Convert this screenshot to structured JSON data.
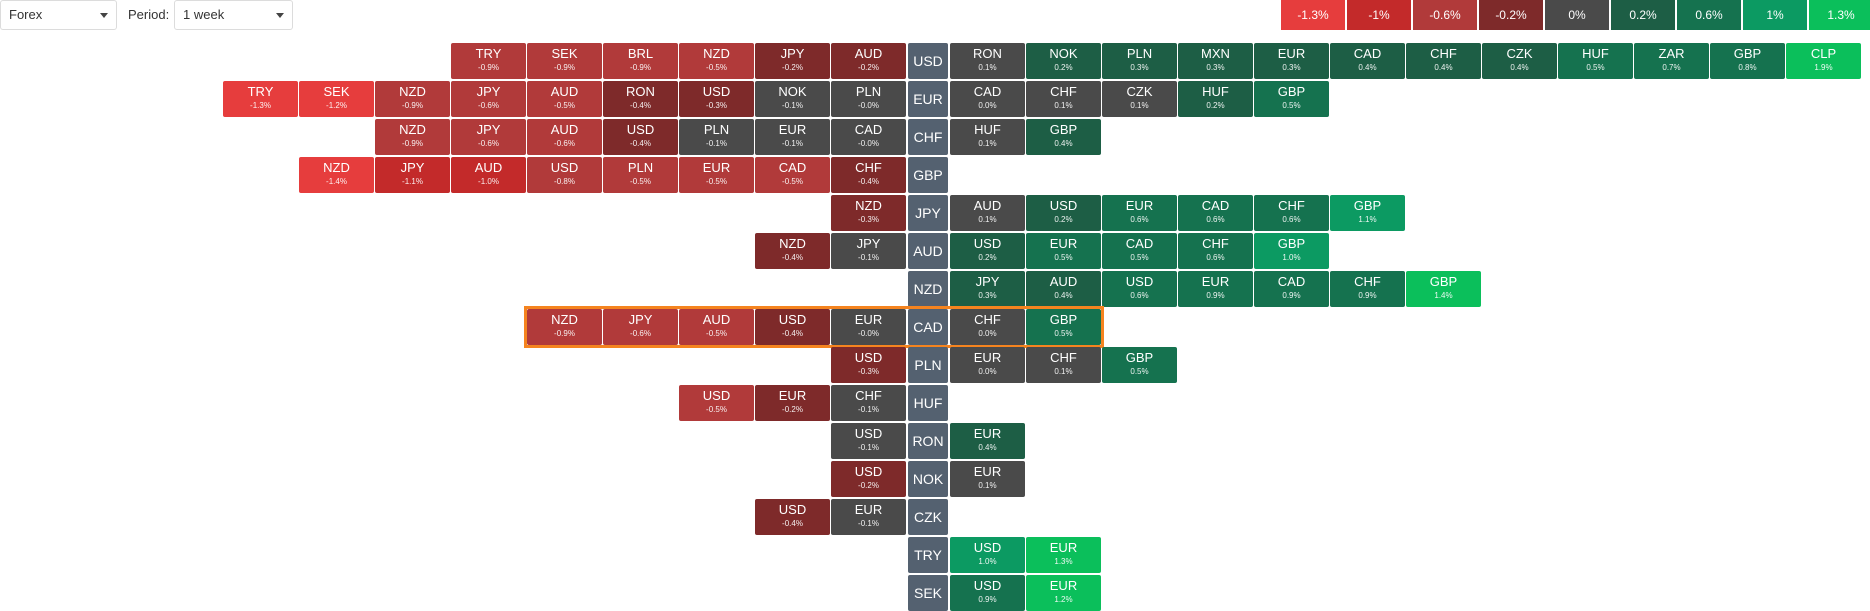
{
  "controls": {
    "market": "Forex",
    "period_label": "Period:",
    "period": "1 week"
  },
  "colors": {
    "neg_strong": "#e63d3d",
    "neg_mid": "#c32a2a",
    "neg_soft": "#b13a3a",
    "neg_weak": "#7e2a2a",
    "neutral": "#4a4a4a",
    "pos_weak": "#1d5e45",
    "pos_soft": "#15724f",
    "pos_mid": "#0c9a62",
    "pos_strong": "#0bbf5b",
    "base": "#546170",
    "highlight": "#f5841f"
  },
  "scale": [
    "-1.3%",
    "-1%",
    "-0.6%",
    "-0.2%",
    "0%",
    "0.2%",
    "0.6%",
    "1%",
    "1.3%"
  ],
  "highlight_row": "CAD",
  "rows": [
    {
      "base": "USD",
      "left": [
        [
          "TRY",
          "-0.9%"
        ],
        [
          "SEK",
          "-0.9%"
        ],
        [
          "BRL",
          "-0.9%"
        ],
        [
          "NZD",
          "-0.5%"
        ],
        [
          "JPY",
          "-0.2%"
        ],
        [
          "AUD",
          "-0.2%"
        ]
      ],
      "right": [
        [
          "RON",
          "0.1%"
        ],
        [
          "NOK",
          "0.2%"
        ],
        [
          "PLN",
          "0.3%"
        ],
        [
          "MXN",
          "0.3%"
        ],
        [
          "EUR",
          "0.3%"
        ],
        [
          "CAD",
          "0.4%"
        ],
        [
          "CHF",
          "0.4%"
        ],
        [
          "CZK",
          "0.4%"
        ],
        [
          "HUF",
          "0.5%"
        ],
        [
          "ZAR",
          "0.7%"
        ],
        [
          "GBP",
          "0.8%"
        ],
        [
          "CLP",
          "1.9%"
        ]
      ]
    },
    {
      "base": "EUR",
      "left": [
        [
          "TRY",
          "-1.3%"
        ],
        [
          "SEK",
          "-1.2%"
        ],
        [
          "NZD",
          "-0.9%"
        ],
        [
          "JPY",
          "-0.6%"
        ],
        [
          "AUD",
          "-0.5%"
        ],
        [
          "RON",
          "-0.4%"
        ],
        [
          "USD",
          "-0.3%"
        ],
        [
          "NOK",
          "-0.1%"
        ],
        [
          "PLN",
          "-0.0%"
        ]
      ],
      "right": [
        [
          "CAD",
          "0.0%"
        ],
        [
          "CHF",
          "0.1%"
        ],
        [
          "CZK",
          "0.1%"
        ],
        [
          "HUF",
          "0.2%"
        ],
        [
          "GBP",
          "0.5%"
        ]
      ]
    },
    {
      "base": "CHF",
      "left": [
        [
          "NZD",
          "-0.9%"
        ],
        [
          "JPY",
          "-0.6%"
        ],
        [
          "AUD",
          "-0.6%"
        ],
        [
          "USD",
          "-0.4%"
        ],
        [
          "PLN",
          "-0.1%"
        ],
        [
          "EUR",
          "-0.1%"
        ],
        [
          "CAD",
          "-0.0%"
        ]
      ],
      "right": [
        [
          "HUF",
          "0.1%"
        ],
        [
          "GBP",
          "0.4%"
        ]
      ]
    },
    {
      "base": "GBP",
      "left": [
        [
          "NZD",
          "-1.4%"
        ],
        [
          "JPY",
          "-1.1%"
        ],
        [
          "AUD",
          "-1.0%"
        ],
        [
          "USD",
          "-0.8%"
        ],
        [
          "PLN",
          "-0.5%"
        ],
        [
          "EUR",
          "-0.5%"
        ],
        [
          "CAD",
          "-0.5%"
        ],
        [
          "CHF",
          "-0.4%"
        ]
      ],
      "right": []
    },
    {
      "base": "JPY",
      "left": [
        [
          "NZD",
          "-0.3%"
        ]
      ],
      "right": [
        [
          "AUD",
          "0.1%"
        ],
        [
          "USD",
          "0.2%"
        ],
        [
          "EUR",
          "0.6%"
        ],
        [
          "CAD",
          "0.6%"
        ],
        [
          "CHF",
          "0.6%"
        ],
        [
          "GBP",
          "1.1%"
        ]
      ]
    },
    {
      "base": "AUD",
      "left": [
        [
          "NZD",
          "-0.4%"
        ],
        [
          "JPY",
          "-0.1%"
        ]
      ],
      "right": [
        [
          "USD",
          "0.2%"
        ],
        [
          "EUR",
          "0.5%"
        ],
        [
          "CAD",
          "0.5%"
        ],
        [
          "CHF",
          "0.6%"
        ],
        [
          "GBP",
          "1.0%"
        ]
      ]
    },
    {
      "base": "NZD",
      "left": [],
      "right": [
        [
          "JPY",
          "0.3%"
        ],
        [
          "AUD",
          "0.4%"
        ],
        [
          "USD",
          "0.6%"
        ],
        [
          "EUR",
          "0.9%"
        ],
        [
          "CAD",
          "0.9%"
        ],
        [
          "CHF",
          "0.9%"
        ],
        [
          "GBP",
          "1.4%"
        ]
      ]
    },
    {
      "base": "CAD",
      "left": [
        [
          "NZD",
          "-0.9%"
        ],
        [
          "JPY",
          "-0.6%"
        ],
        [
          "AUD",
          "-0.5%"
        ],
        [
          "USD",
          "-0.4%"
        ],
        [
          "EUR",
          "-0.0%"
        ]
      ],
      "right": [
        [
          "CHF",
          "0.0%"
        ],
        [
          "GBP",
          "0.5%"
        ]
      ]
    },
    {
      "base": "PLN",
      "left": [
        [
          "USD",
          "-0.3%"
        ]
      ],
      "right": [
        [
          "EUR",
          "0.0%"
        ],
        [
          "CHF",
          "0.1%"
        ],
        [
          "GBP",
          "0.5%"
        ]
      ]
    },
    {
      "base": "HUF",
      "left": [
        [
          "USD",
          "-0.5%"
        ],
        [
          "EUR",
          "-0.2%"
        ],
        [
          "CHF",
          "-0.1%"
        ]
      ],
      "right": []
    },
    {
      "base": "RON",
      "left": [
        [
          "USD",
          "-0.1%"
        ]
      ],
      "right": [
        [
          "EUR",
          "0.4%"
        ]
      ]
    },
    {
      "base": "NOK",
      "left": [
        [
          "USD",
          "-0.2%"
        ]
      ],
      "right": [
        [
          "EUR",
          "0.1%"
        ]
      ]
    },
    {
      "base": "CZK",
      "left": [
        [
          "USD",
          "-0.4%"
        ],
        [
          "EUR",
          "-0.1%"
        ]
      ],
      "right": []
    },
    {
      "base": "TRY",
      "left": [],
      "right": [
        [
          "USD",
          "1.0%"
        ],
        [
          "EUR",
          "1.3%"
        ]
      ]
    },
    {
      "base": "SEK",
      "left": [],
      "right": [
        [
          "USD",
          "0.9%"
        ],
        [
          "EUR",
          "1.2%"
        ]
      ]
    }
  ]
}
